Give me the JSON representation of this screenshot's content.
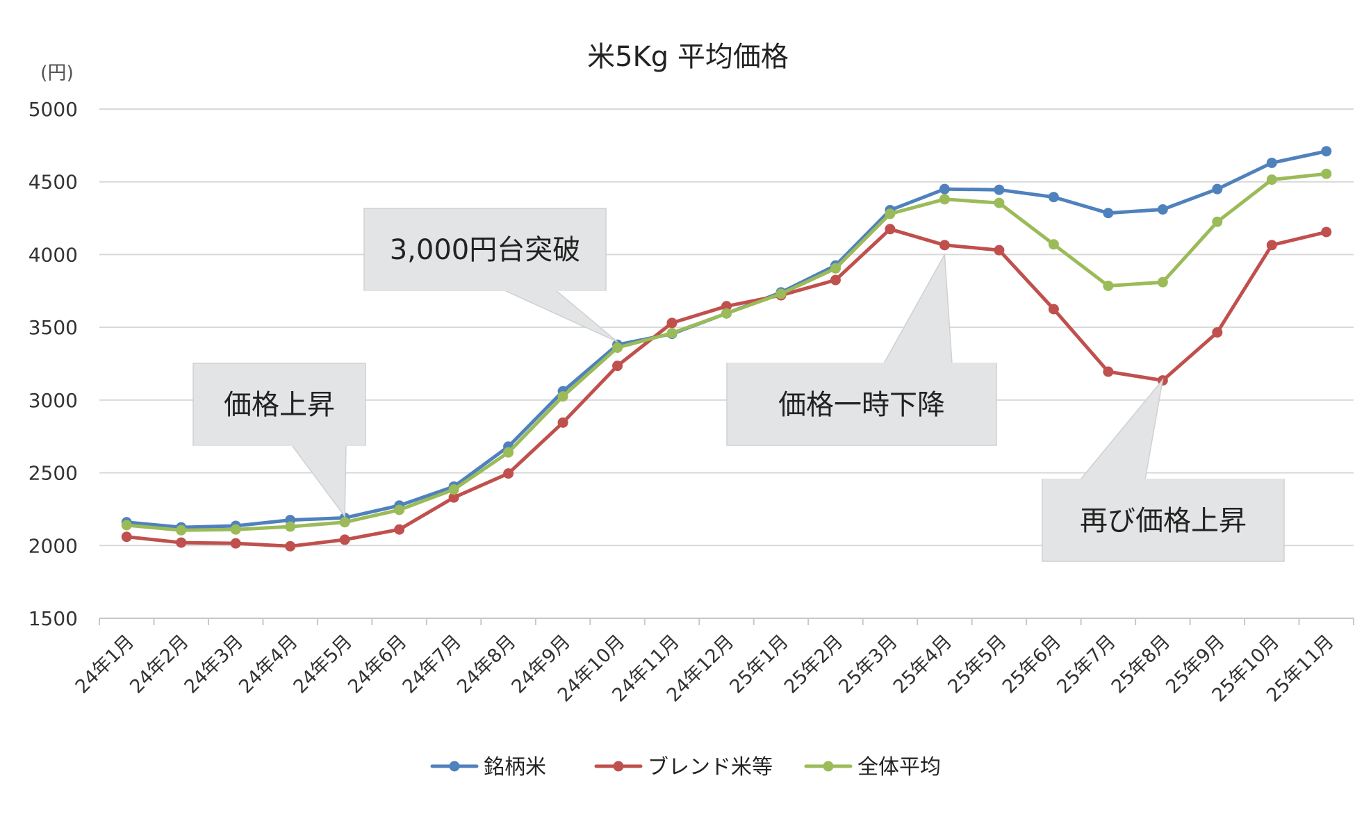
{
  "chart_data": {
    "type": "line",
    "title": "米5Kg 平均価格",
    "ylabel": "(円)",
    "xlabel": "",
    "ylim": [
      1500,
      5000
    ],
    "yticks": [
      1500,
      2000,
      2500,
      3000,
      3500,
      4000,
      4500,
      5000
    ],
    "grid": true,
    "legend_position": "bottom",
    "categories": [
      "24年1月",
      "24年2月",
      "24年3月",
      "24年4月",
      "24年5月",
      "24年6月",
      "24年7月",
      "24年8月",
      "24年9月",
      "24年10月",
      "24年11月",
      "24年12月",
      "25年1月",
      "25年2月",
      "25年3月",
      "25年4月",
      "25年5月",
      "25年6月",
      "25年7月",
      "25年8月",
      "25年9月",
      "25年10月",
      "25年11月"
    ],
    "series": [
      {
        "name": "銘柄米",
        "color": "#4f81bd",
        "values": [
          2160,
          2125,
          2135,
          2175,
          2190,
          2275,
          2405,
          2680,
          3060,
          3380,
          3455,
          3595,
          3740,
          3925,
          4305,
          4450,
          4445,
          4395,
          4285,
          4310,
          4450,
          4630,
          4710
        ]
      },
      {
        "name": "ブレンド米等",
        "color": "#c0504d",
        "values": [
          2060,
          2020,
          2015,
          1995,
          2040,
          2110,
          2330,
          2495,
          2845,
          3235,
          3530,
          3645,
          3720,
          3825,
          4175,
          4065,
          4030,
          3625,
          3195,
          3135,
          3465,
          4065,
          4155
        ]
      },
      {
        "name": "全体平均",
        "color": "#9bbb59",
        "values": [
          2140,
          2105,
          2110,
          2130,
          2160,
          2245,
          2385,
          2640,
          3025,
          3360,
          3460,
          3595,
          3730,
          3905,
          4280,
          4380,
          4355,
          4070,
          3785,
          3810,
          4225,
          4515,
          4555
        ]
      }
    ],
    "annotations": [
      {
        "text": "価格上昇",
        "target_category": "24年5月",
        "target_value": 2200
      },
      {
        "text": "3,000円台突破",
        "target_category": "24年10月",
        "target_value": 3400
      },
      {
        "text": "価格一時下降",
        "target_category": "25年4月",
        "target_value": 4000
      },
      {
        "text": "再び価格上昇",
        "target_category": "25年8月",
        "target_value": 3140
      }
    ]
  }
}
